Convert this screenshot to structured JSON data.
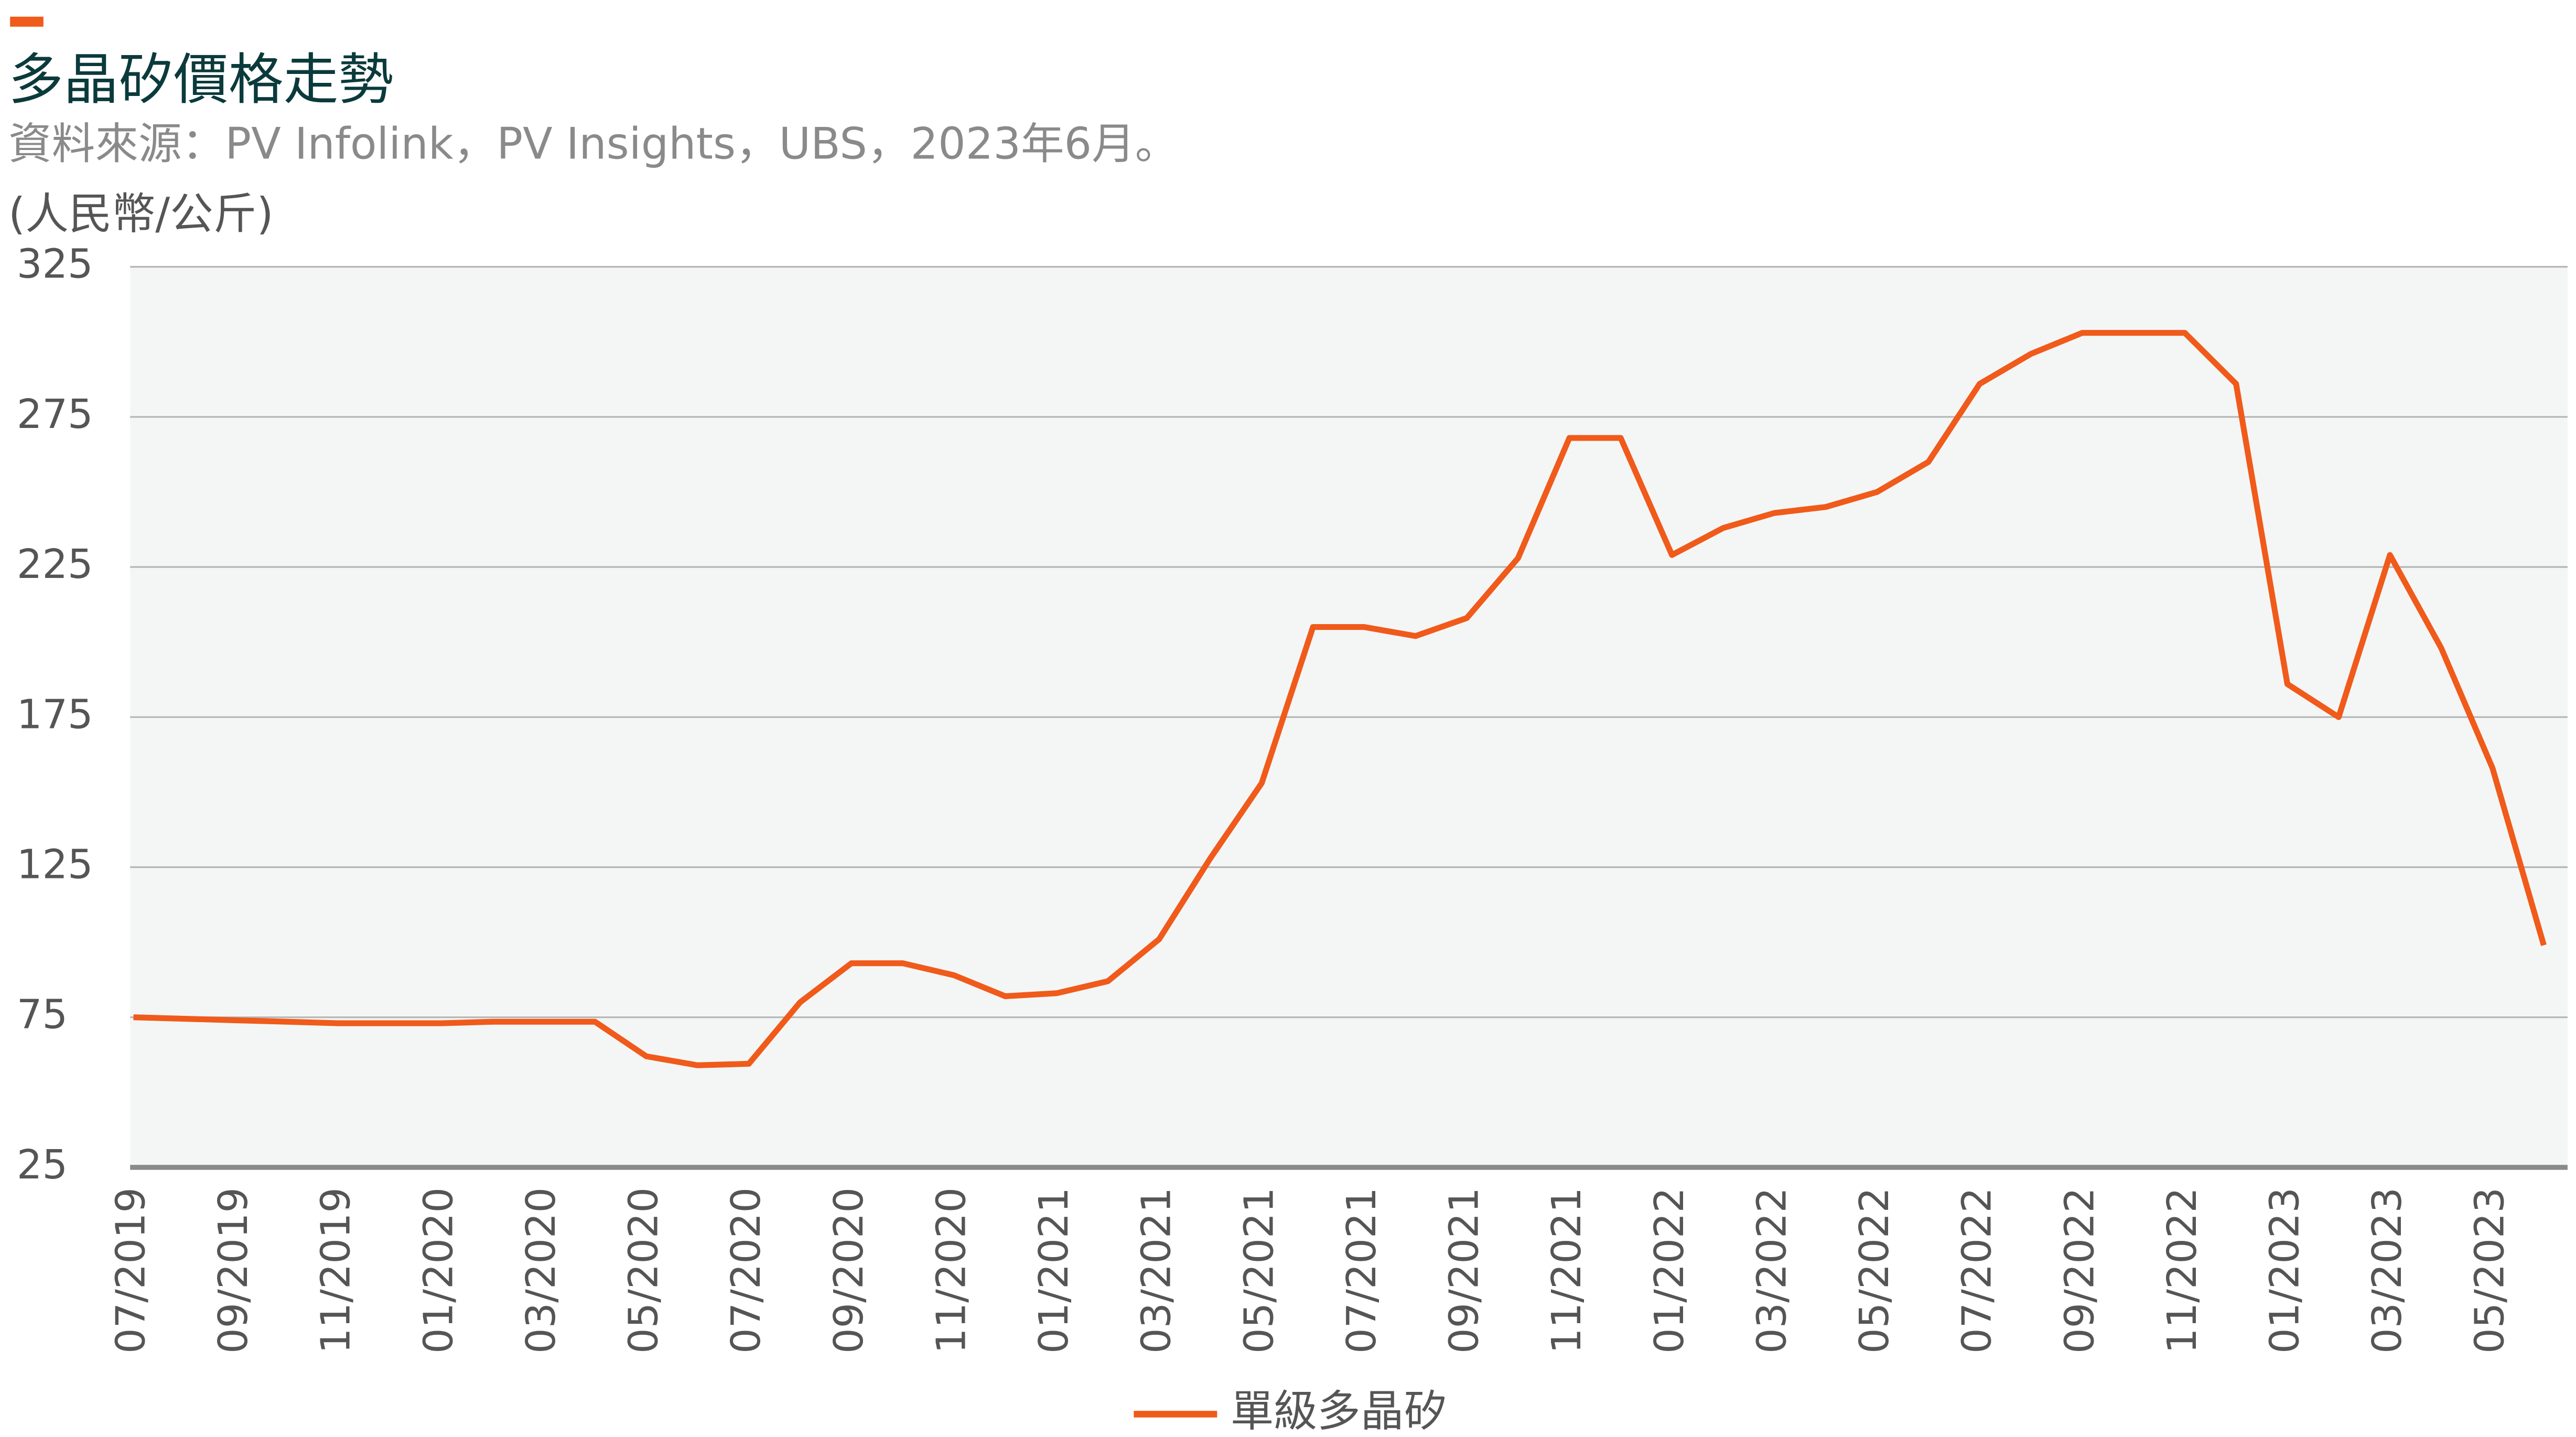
{
  "chart_data": {
    "type": "line",
    "title": "多晶矽價格走勢",
    "subtitle": "資料來源：PV Infolink，PV Insights，UBS，2023年6月。",
    "y_label": "(人民幣/公斤)",
    "categories": [
      "07/2019",
      null,
      "09/2019",
      null,
      "11/2019",
      null,
      "01/2020",
      null,
      "03/2020",
      null,
      "05/2020",
      null,
      "07/2020",
      null,
      "09/2020",
      null,
      "11/2020",
      null,
      "01/2021",
      null,
      "03/2021",
      null,
      "05/2021",
      null,
      "07/2021",
      null,
      "09/2021",
      null,
      "11/2021",
      null,
      "01/2022",
      null,
      "03/2022",
      null,
      "05/2022",
      null,
      "07/2022",
      null,
      "09/2022",
      null,
      "11/2022",
      null,
      "01/2023",
      null,
      "03/2023",
      null,
      "05/2023",
      null
    ],
    "series": [
      {
        "name": "單級多晶矽",
        "color": "#f05a1a",
        "values": [
          75,
          74.5,
          74,
          73.5,
          73,
          73,
          73,
          73.5,
          73.5,
          73.5,
          62,
          59,
          59.5,
          80,
          93,
          93,
          89,
          82,
          83,
          87,
          101,
          128,
          153,
          205,
          205,
          202,
          208,
          228,
          268,
          268,
          229,
          238,
          243,
          245,
          250,
          260,
          286,
          296,
          303,
          303,
          303,
          286,
          186,
          175,
          229,
          198,
          158,
          99
        ]
      }
    ],
    "ylim": [
      25,
      325
    ],
    "yticks": [
      25,
      75,
      125,
      175,
      225,
      275,
      325
    ],
    "grid": true
  }
}
